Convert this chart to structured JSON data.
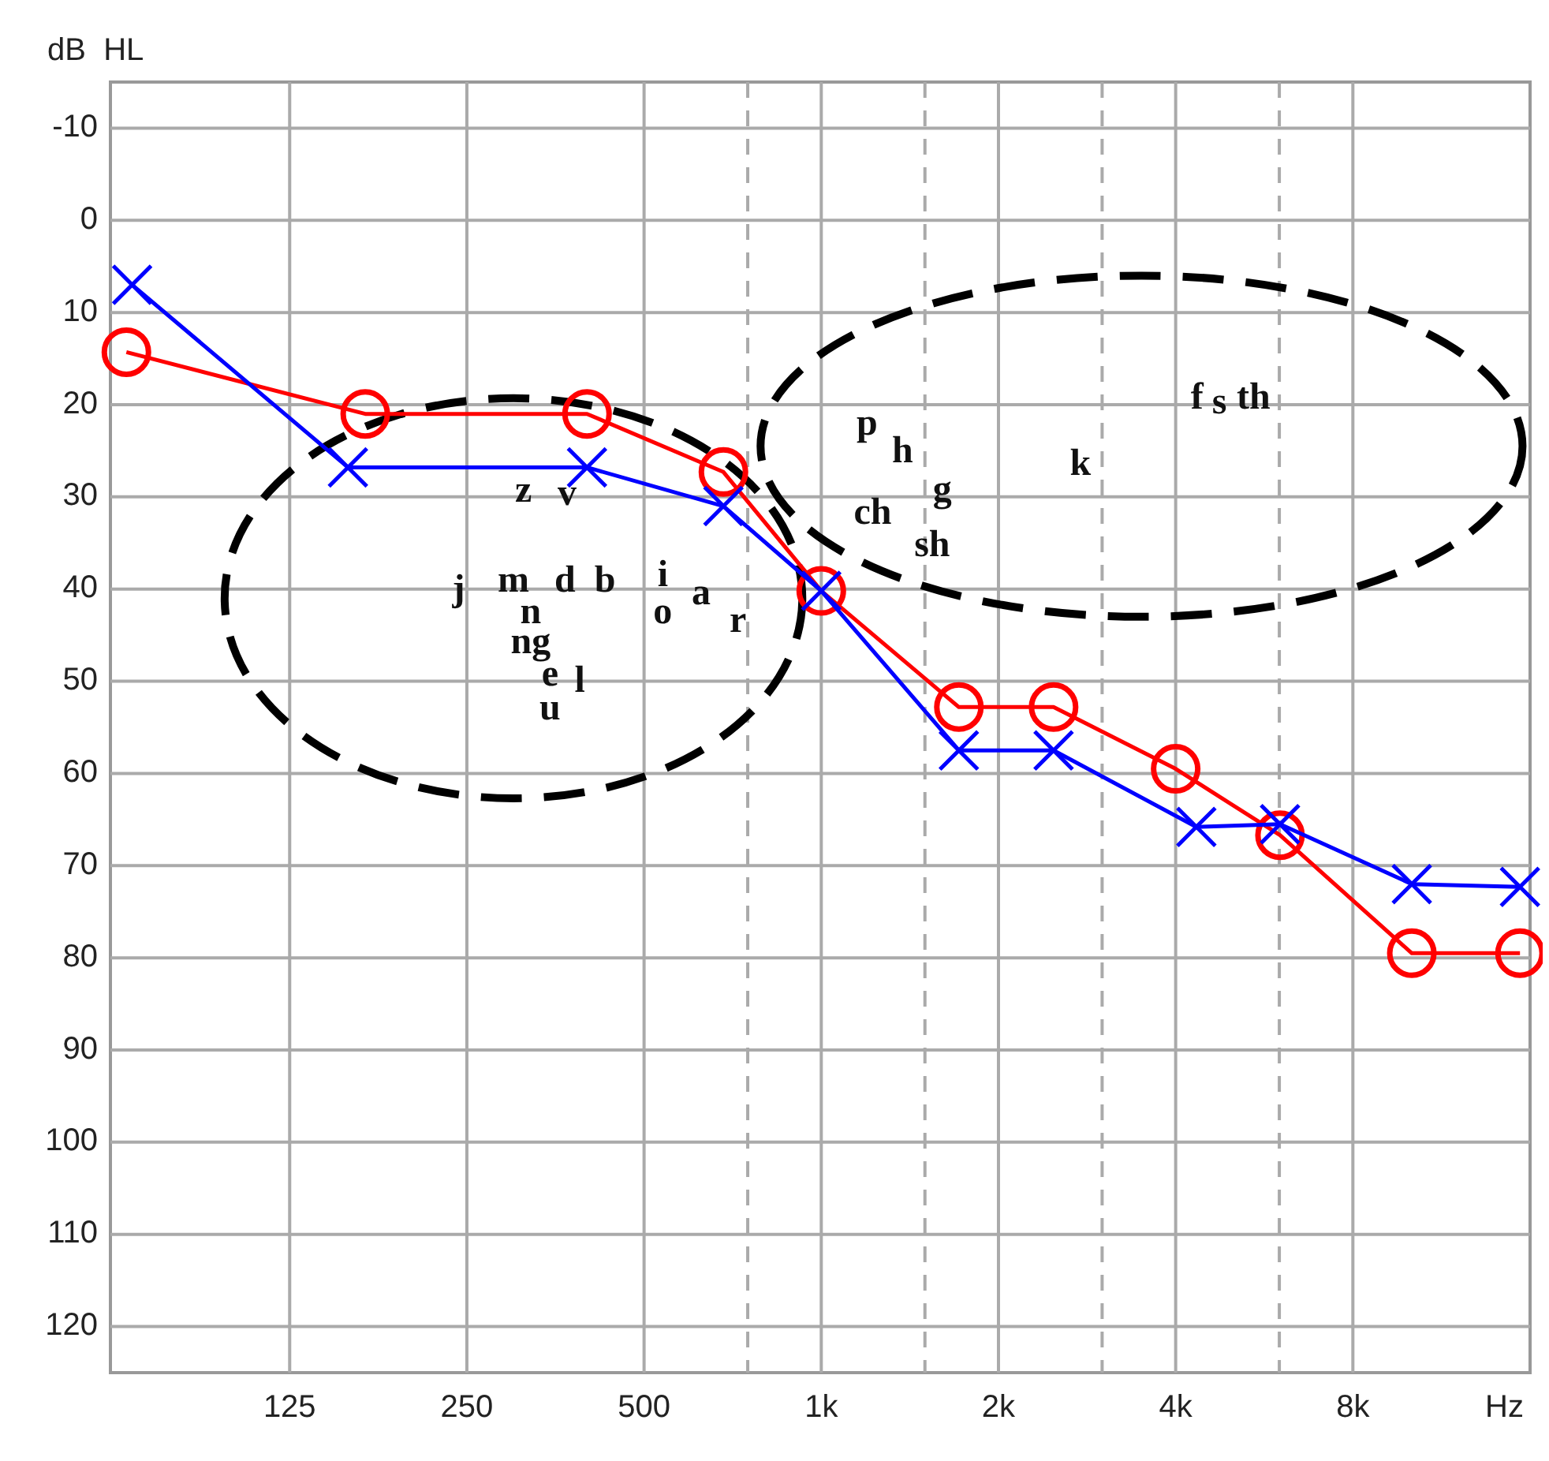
{
  "chart_data": {
    "type": "line",
    "ylabel": "dB  HL",
    "xlabel": "Hz",
    "log": "x",
    "xlim": [
      62,
      16000
    ],
    "ylim": [
      125,
      -15
    ],
    "xticks": [
      125,
      {
        "value": 250,
        "label": "250"
      },
      500,
      {
        "value": 750,
        "label": null
      },
      {
        "value": 1000,
        "label": "1k"
      },
      {
        "value": 1500,
        "label": null
      },
      {
        "value": 2000,
        "label": "2k"
      },
      {
        "value": 3000,
        "label": null
      },
      {
        "value": 4000,
        "label": "4k"
      },
      {
        "value": 6000,
        "label": null
      },
      {
        "value": 8000,
        "label": "8k"
      }
    ],
    "yticks": [
      -10,
      0,
      10,
      20,
      30,
      40,
      50,
      60,
      70,
      80,
      90,
      100,
      110,
      120
    ],
    "grid": true,
    "series": [
      {
        "color": "#ff0000",
        "marker": "circle",
        "x": [
          66,
          168,
          400,
          682,
          1000,
          1713,
          2481,
          4000,
          6016,
          10075,
          15380
        ],
        "values": [
          14.3,
          21,
          21,
          27.3,
          40.2,
          52.8,
          52.8,
          59.5,
          66.7,
          79.5,
          79.5
        ]
      },
      {
        "color": "#0000ff",
        "marker": "cross",
        "x": [
          67.5,
          157,
          400,
          682,
          1000,
          1713,
          2481,
          4337,
          6016,
          10075,
          15380
        ],
        "values": [
          7,
          26.8,
          26.8,
          31,
          40.2,
          57.5,
          57.5,
          65.8,
          65.5,
          72,
          72.3
        ]
      }
    ],
    "annotations": [
      "j",
      "m",
      "d",
      "b",
      "n",
      "ng",
      "e",
      "l",
      "u",
      "z",
      "v",
      "i",
      "o",
      "a",
      "r",
      "p",
      "h",
      "g",
      "ch",
      "sh",
      "k",
      "f",
      "s",
      "th"
    ]
  }
}
